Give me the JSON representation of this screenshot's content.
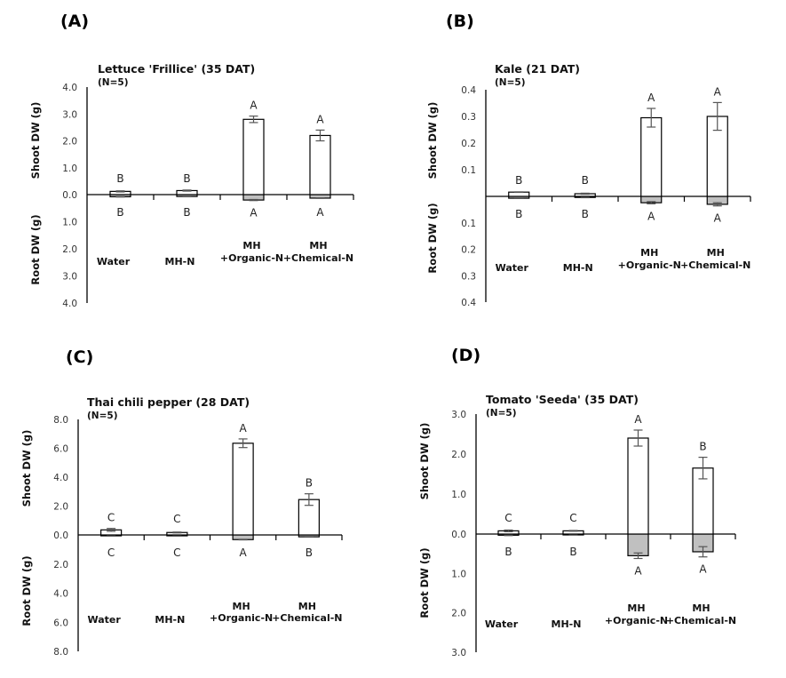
{
  "chart_data": [
    {
      "type": "bar",
      "panel": "(A)",
      "title": "Lettuce 'Frillice' (35 DAT)",
      "subtitle": "(N=5)",
      "ylabel_top": "Shoot DW (g)",
      "ylabel_bottom": "Root DW (g)",
      "categories": [
        [
          "Water"
        ],
        [
          "MH-N"
        ],
        [
          "MH",
          "+Organic-N"
        ],
        [
          "MH",
          "+Chemical-N"
        ]
      ],
      "ylim": [
        4.0,
        4.0
      ],
      "tick_labels_top": [
        "4.0",
        "3.0",
        "2.0",
        "1.0",
        "0.0"
      ],
      "tick_labels_bottom": [
        "1.0",
        "2.0",
        "3.0",
        "4.0"
      ],
      "series": [
        {
          "name": "Shoot DW",
          "values": [
            0.12,
            0.15,
            2.8,
            2.2
          ],
          "errors": [
            0.02,
            0.02,
            0.12,
            0.2
          ],
          "letters": [
            "B",
            "B",
            "A",
            "A"
          ]
        },
        {
          "name": "Root DW",
          "values": [
            0.08,
            0.07,
            0.2,
            0.13
          ],
          "errors": [
            0.01,
            0.01,
            0.02,
            0.01
          ],
          "letters": [
            "B",
            "B",
            "A",
            "A"
          ]
        }
      ]
    },
    {
      "type": "bar",
      "panel": "(B)",
      "title": "Kale (21 DAT)",
      "subtitle": "(N=5)",
      "ylabel_top": "Shoot DW (g)",
      "ylabel_bottom": "Root DW (g)",
      "categories": [
        [
          "Water"
        ],
        [
          "MH-N"
        ],
        [
          "MH",
          "+Organic-N"
        ],
        [
          "MH",
          "+Chemical-N"
        ]
      ],
      "ylim": [
        0.4,
        0.4
      ],
      "tick_labels_top": [
        "0.4",
        "0.3",
        "0.2",
        "0.1",
        ""
      ],
      "tick_labels_bottom": [
        "0.1",
        "0.2",
        "0.3",
        "0.4"
      ],
      "series": [
        {
          "name": "Shoot DW",
          "values": [
            0.016,
            0.01,
            0.295,
            0.3
          ],
          "errors": [
            0.001,
            0.002,
            0.035,
            0.052
          ],
          "letters": [
            "B",
            "B",
            "A",
            "A"
          ]
        },
        {
          "name": "Root DW",
          "values": [
            0.007,
            0.004,
            0.024,
            0.03
          ],
          "errors": [
            0.001,
            0.001,
            0.004,
            0.006
          ],
          "letters": [
            "B",
            "B",
            "A",
            "A"
          ]
        }
      ]
    },
    {
      "type": "bar",
      "panel": "(C)",
      "title": "Thai chili pepper (28 DAT)",
      "subtitle": "(N=5)",
      "ylabel_top": "Shoot DW (g)",
      "ylabel_bottom": "Root DW (g)",
      "categories": [
        [
          "Water"
        ],
        [
          "MH-N"
        ],
        [
          "MH",
          "+Organic-N"
        ],
        [
          "MH",
          "+Chemical-N"
        ]
      ],
      "ylim": [
        8.0,
        8.0
      ],
      "tick_labels_top": [
        "8.0",
        "6.0",
        "4.0",
        "2.0",
        "0.0"
      ],
      "tick_labels_bottom": [
        "2.0",
        "4.0",
        "6.0",
        "8.0"
      ],
      "series": [
        {
          "name": "Shoot DW",
          "values": [
            0.35,
            0.17,
            6.35,
            2.45
          ],
          "errors": [
            0.1,
            0.03,
            0.3,
            0.4
          ],
          "letters": [
            "C",
            "C",
            "A",
            "B"
          ]
        },
        {
          "name": "Root DW",
          "values": [
            0.02,
            0.01,
            0.32,
            0.13
          ],
          "errors": [
            0.005,
            0.005,
            0.02,
            0.02
          ],
          "letters": [
            "C",
            "C",
            "A",
            "B"
          ]
        }
      ]
    },
    {
      "type": "bar",
      "panel": "(D)",
      "title": "Tomato 'Seeda' (35 DAT)",
      "subtitle": "(N=5)",
      "ylabel_top": "Shoot DW (g)",
      "ylabel_bottom": "Root DW (g)",
      "categories": [
        [
          "Water"
        ],
        [
          "MH-N"
        ],
        [
          "MH",
          "+Organic-N"
        ],
        [
          "MH",
          "+Chemical-N"
        ]
      ],
      "ylim": [
        3.0,
        3.0
      ],
      "tick_labels_top": [
        "3.0",
        "2.0",
        "1.0",
        "0.0"
      ],
      "tick_labels_bottom": [
        "1.0",
        "2.0",
        "3.0"
      ],
      "series": [
        {
          "name": "Shoot DW",
          "values": [
            0.08,
            0.08,
            2.4,
            1.65
          ],
          "errors": [
            0.02,
            0.01,
            0.2,
            0.27
          ],
          "letters": [
            "C",
            "C",
            "A",
            "B"
          ]
        },
        {
          "name": "Root DW",
          "values": [
            0.03,
            0.02,
            0.55,
            0.45
          ],
          "errors": [
            0.01,
            0.005,
            0.07,
            0.13
          ],
          "letters": [
            "B",
            "B",
            "A",
            "A"
          ]
        }
      ]
    }
  ],
  "colors": {
    "shoot_fill": "#ffffff",
    "root_fill": "#c0c0c0",
    "bar_stroke": "#000000",
    "error_stroke": "#555555"
  }
}
